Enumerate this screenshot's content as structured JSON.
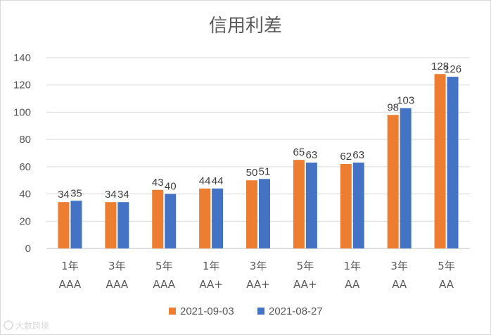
{
  "chart_data": {
    "type": "bar",
    "title": "信用利差",
    "categories": [
      [
        "1年",
        "AAA"
      ],
      [
        "3年",
        "AAA"
      ],
      [
        "5年",
        "AAA"
      ],
      [
        "1年",
        "AA+"
      ],
      [
        "3年",
        "AA+"
      ],
      [
        "5年",
        "AA+"
      ],
      [
        "1年",
        "AA"
      ],
      [
        "3年",
        "AA"
      ],
      [
        "5年",
        "AA"
      ]
    ],
    "series": [
      {
        "name": "2021-09-03",
        "color": "#ED7D31",
        "values": [
          34,
          34,
          43,
          44,
          50,
          65,
          62,
          98,
          128
        ]
      },
      {
        "name": "2021-08-27",
        "color": "#4472C4",
        "values": [
          35,
          34,
          40,
          44,
          51,
          63,
          63,
          103,
          126
        ]
      }
    ],
    "ylim": [
      0,
      140
    ],
    "yticks": [
      0,
      20,
      40,
      60,
      80,
      100,
      120,
      140
    ],
    "grid": true,
    "legend": "bottom"
  },
  "watermark": "大数跨境"
}
